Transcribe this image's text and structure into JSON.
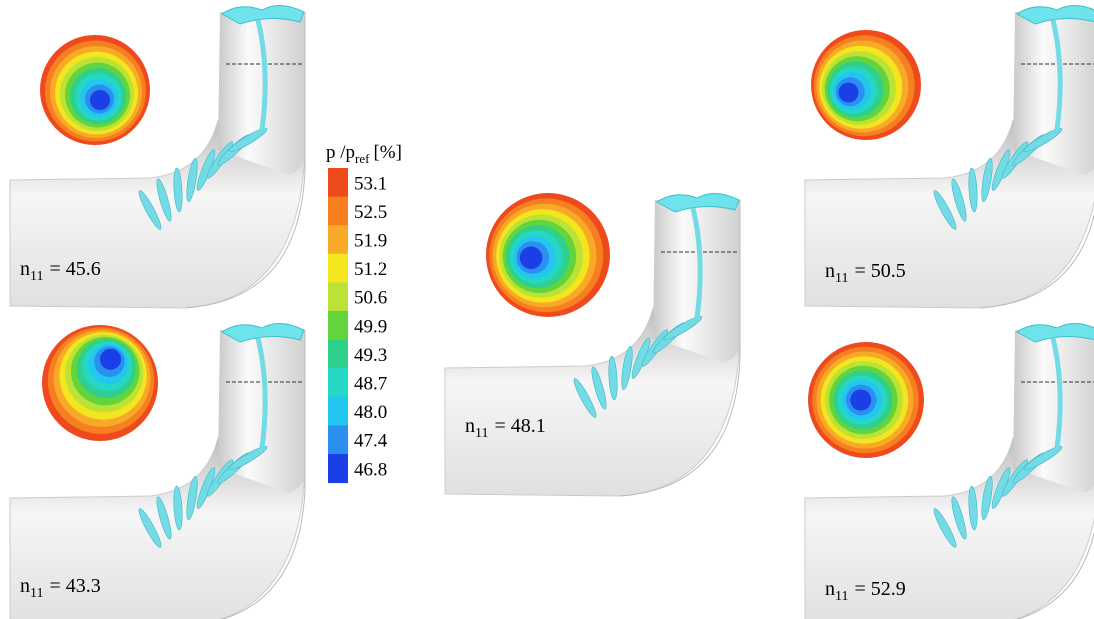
{
  "colorbar": {
    "title": {
      "main": "p /p",
      "sub": "ref",
      "unit": "[%]"
    },
    "levels": [
      {
        "label": "53.1",
        "color": "#ee4a1e"
      },
      {
        "label": "52.5",
        "color": "#f6801f"
      },
      {
        "label": "51.9",
        "color": "#f9a928"
      },
      {
        "label": "51.2",
        "color": "#f3e61e"
      },
      {
        "label": "50.6",
        "color": "#bde236"
      },
      {
        "label": "49.9",
        "color": "#63d43c"
      },
      {
        "label": "49.3",
        "color": "#2fd08c"
      },
      {
        "label": "48.7",
        "color": "#25d7c4"
      },
      {
        "label": "48.0",
        "color": "#22c6f0"
      },
      {
        "label": "47.4",
        "color": "#2b8ff0"
      },
      {
        "label": "46.8",
        "color": "#1b3fe6"
      }
    ]
  },
  "panels": [
    {
      "label": {
        "var": "n",
        "sub": "11",
        "rest": "= 45.6"
      }
    },
    {
      "label": {
        "var": "n",
        "sub": "11",
        "rest": "= 43.3"
      }
    },
    {
      "label": {
        "var": "n",
        "sub": "11",
        "rest": "= 48.1"
      }
    },
    {
      "label": {
        "var": "n",
        "sub": "11",
        "rest": "= 50.5"
      }
    },
    {
      "label": {
        "var": "n",
        "sub": "11",
        "rest": "= 52.9"
      }
    }
  ]
}
